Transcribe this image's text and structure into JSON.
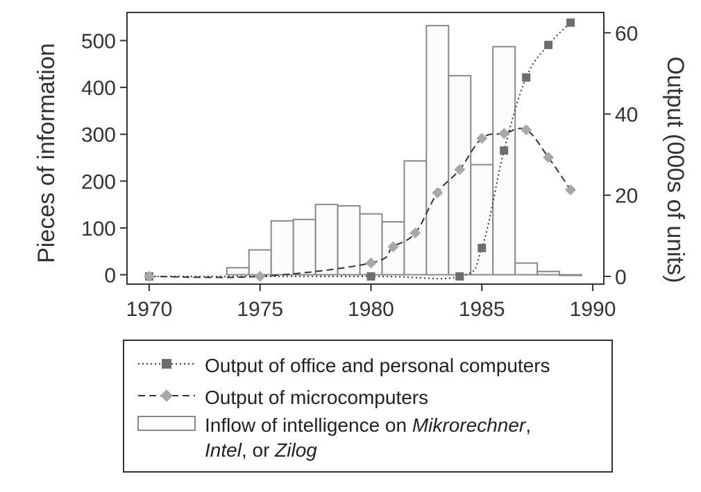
{
  "chart_data": {
    "type": "bar",
    "bars": {
      "name": "Inflow of intelligence on Mikrorechner, Intel, or Zilog",
      "x": [
        1974,
        1975,
        1976,
        1977,
        1978,
        1979,
        1980,
        1981,
        1982,
        1983,
        1984,
        1985,
        1986,
        1987,
        1988,
        1989
      ],
      "values": [
        15,
        53,
        115,
        118,
        150,
        147,
        130,
        113,
        243,
        532,
        425,
        235,
        487,
        25,
        7,
        0
      ]
    },
    "series": [
      {
        "name": "Output of office and personal computers",
        "axis": "right",
        "style": "dotted",
        "marker": "square",
        "x": [
          1970,
          1980,
          1984,
          1985,
          1986,
          1987,
          1988,
          1989
        ],
        "values": [
          0,
          0,
          0,
          7,
          31,
          49,
          57,
          62.5
        ]
      },
      {
        "name": "Output of microcomputers",
        "axis": "right",
        "style": "dashed",
        "marker": "diamond",
        "x": [
          1970,
          1975,
          1980,
          1981,
          1982,
          1983,
          1984,
          1985,
          1986,
          1987,
          1988,
          1989
        ],
        "values": [
          0,
          0,
          3.3,
          7.3,
          10.7,
          20.6,
          26.3,
          34,
          35.2,
          36.1,
          29.3,
          21.3
        ]
      }
    ],
    "xlabel": "",
    "ylabel": "Pieces of information",
    "y2label": "Output (000s of units)",
    "xlim": [
      1969,
      1990.5
    ],
    "ylim": [
      -20,
      560
    ],
    "y2lim": [
      -1.9,
      65
    ],
    "xticks": [
      "1970",
      "1975",
      "1980",
      "1985",
      "1990"
    ],
    "yticks": [
      "0",
      "100",
      "200",
      "300",
      "400",
      "500"
    ],
    "y2ticks": [
      "0",
      "20",
      "40",
      "60"
    ],
    "grid": false,
    "legend_position": "bottom"
  },
  "legend": {
    "row1": "Output of office and personal computers",
    "row2": "Output of microcomputers",
    "row3_prefix": "Inflow of intelligence on ",
    "row3_italic1": "Mikrorechner",
    "row3_comma": ",",
    "row4_italic": "Intel",
    "row4_mid": ", or ",
    "row4_italic2": "Zilog"
  },
  "colors": {
    "frame": "#333333",
    "bar_edge": "#888888",
    "bar_fill": "#fbfbfb",
    "square_marker": "#6e6e6e",
    "diamond_marker": "#a8a8a8",
    "line": "#333333"
  }
}
